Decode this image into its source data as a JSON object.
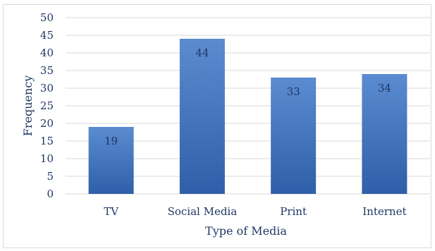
{
  "chart_data": {
    "type": "bar",
    "categories": [
      "TV",
      "Social Media",
      "Print",
      "Internet"
    ],
    "values": [
      19,
      44,
      33,
      34
    ],
    "data_labels": [
      "19",
      "44",
      "33",
      "34"
    ],
    "title": "",
    "xlabel": "Type of Media",
    "ylabel": "Frequency",
    "ylim": [
      0,
      50
    ],
    "yticks": [
      0,
      5,
      10,
      15,
      20,
      25,
      30,
      35,
      40,
      45,
      50
    ],
    "ytick_labels": [
      "0",
      "5",
      "10",
      "15",
      "20",
      "25",
      "30",
      "35",
      "40",
      "45",
      "50"
    ],
    "grid": true,
    "legend": "none",
    "colors": {
      "bar_top": "#5b8bd0",
      "bar_bottom": "#2f5fa8",
      "text": "#1f3864",
      "grid": "#d9d9d9"
    }
  }
}
